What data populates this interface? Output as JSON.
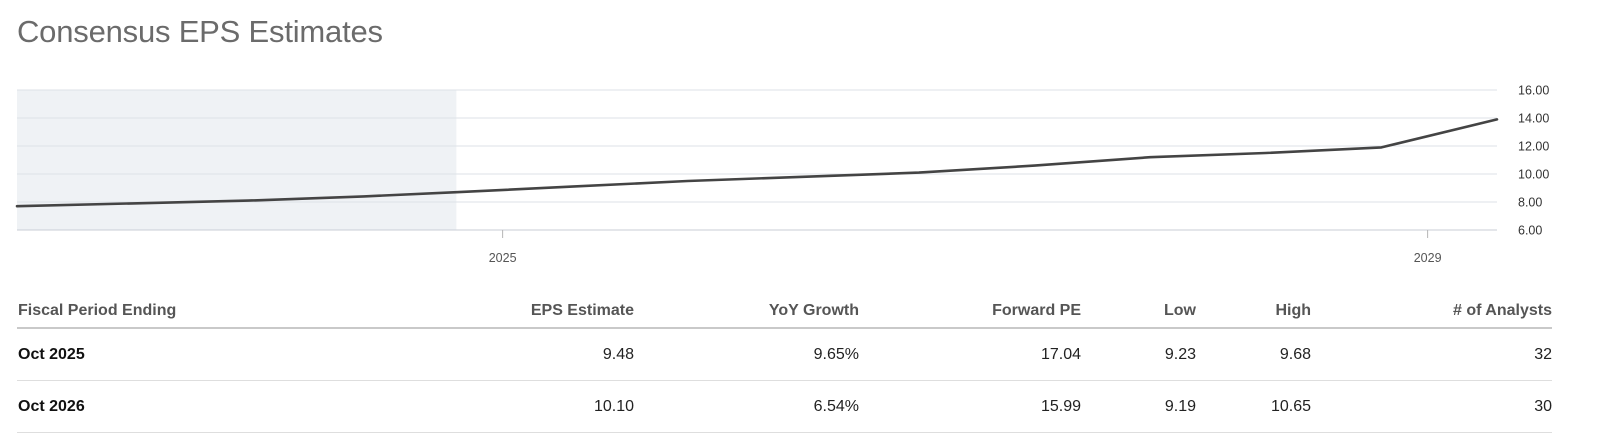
{
  "title": "Consensus EPS Estimates",
  "chart_data": {
    "type": "line",
    "x": [
      2022.9,
      2023.4,
      2023.9,
      2024.4,
      2024.8,
      2025.3,
      2025.8,
      2026.3,
      2026.8,
      2027.3,
      2027.8,
      2028.3,
      2028.8,
      2029.3
    ],
    "y": [
      7.7,
      7.9,
      8.1,
      8.4,
      8.7,
      9.1,
      9.5,
      9.8,
      10.1,
      10.6,
      11.2,
      11.5,
      11.9,
      13.9
    ],
    "historical_x_range": [
      2022.9,
      2024.8
    ],
    "ylim": [
      6,
      16
    ],
    "yticks": [
      "6.00",
      "8.00",
      "10.00",
      "12.00",
      "14.00",
      "16.00"
    ],
    "xticks": [
      "2025",
      "2029"
    ],
    "grid": true
  },
  "table": {
    "headers": [
      "Fiscal Period Ending",
      "EPS Estimate",
      "YoY Growth",
      "Forward PE",
      "Low",
      "High",
      "# of Analysts"
    ],
    "rows": [
      [
        "Oct 2025",
        "9.48",
        "9.65%",
        "17.04",
        "9.23",
        "9.68",
        "32"
      ],
      [
        "Oct 2026",
        "10.10",
        "6.54%",
        "15.99",
        "9.19",
        "10.65",
        "30"
      ]
    ]
  }
}
